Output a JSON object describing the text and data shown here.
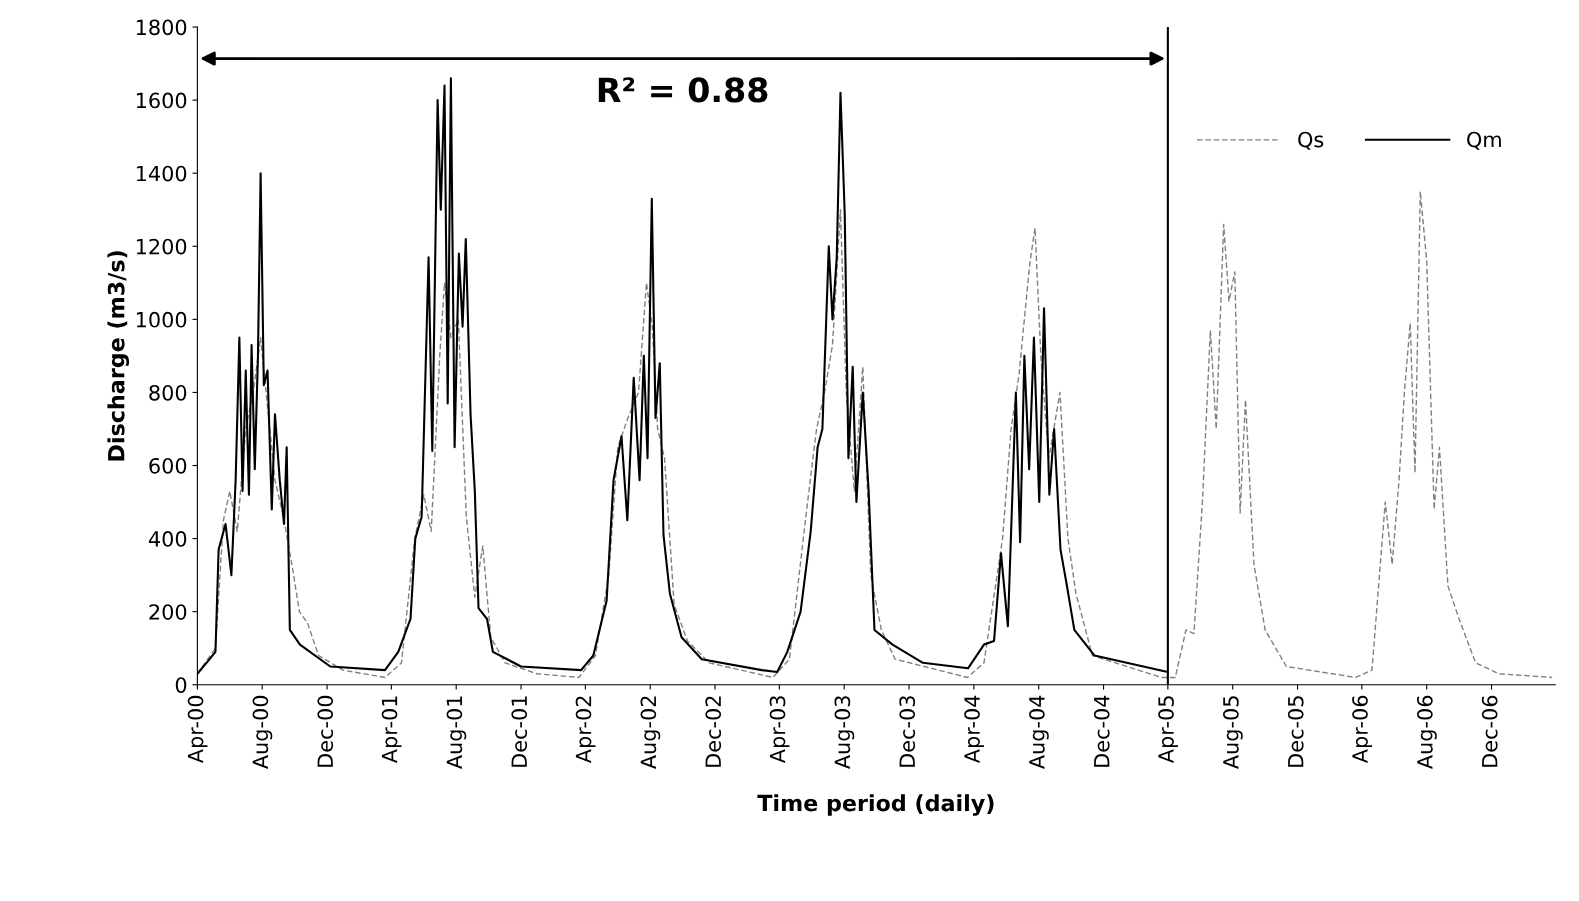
{
  "chart_data": {
    "type": "line",
    "xlabel": "Time period (daily)",
    "ylabel": "Discharge (m3/s)",
    "xlim": [
      "2000-04-01",
      "2007-03-31"
    ],
    "ylim": [
      0,
      1800
    ],
    "yticks": [
      0,
      200,
      400,
      600,
      800,
      1000,
      1200,
      1400,
      1600,
      1800
    ],
    "xticks": [
      {
        "value": "2000-04-01",
        "label": "Apr-00"
      },
      {
        "value": "2000-08-01",
        "label": "Aug-00"
      },
      {
        "value": "2000-12-01",
        "label": "Dec-00"
      },
      {
        "value": "2001-04-01",
        "label": "Apr-01"
      },
      {
        "value": "2001-08-01",
        "label": "Aug-01"
      },
      {
        "value": "2001-12-01",
        "label": "Dec-01"
      },
      {
        "value": "2002-04-01",
        "label": "Apr-02"
      },
      {
        "value": "2002-08-01",
        "label": "Aug-02"
      },
      {
        "value": "2002-12-01",
        "label": "Dec-02"
      },
      {
        "value": "2003-04-01",
        "label": "Apr-03"
      },
      {
        "value": "2003-08-01",
        "label": "Aug-03"
      },
      {
        "value": "2003-12-01",
        "label": "Dec-03"
      },
      {
        "value": "2004-04-01",
        "label": "Apr-04"
      },
      {
        "value": "2004-08-01",
        "label": "Aug-04"
      },
      {
        "value": "2004-12-01",
        "label": "Dec-04"
      },
      {
        "value": "2005-04-01",
        "label": "Apr-05"
      },
      {
        "value": "2005-08-01",
        "label": "Aug-05"
      },
      {
        "value": "2005-12-01",
        "label": "Dec-05"
      },
      {
        "value": "2006-04-01",
        "label": "Apr-06"
      },
      {
        "value": "2006-08-01",
        "label": "Aug-06"
      },
      {
        "value": "2006-12-01",
        "label": "Dec-06"
      }
    ],
    "grid": false,
    "legend": "top right",
    "marker": "none",
    "ref_lines": [
      {
        "axis": "x",
        "value": "2005-04-01",
        "label": null,
        "color": "#000000",
        "line_style": "solid"
      }
    ],
    "annotations": [
      "R² = 0.88"
    ],
    "series": [
      {
        "name": "Qs",
        "color": "#808080",
        "line_style": "dashed",
        "x": [
          "2000-04-01",
          "2000-05-05",
          "2000-05-20",
          "2000-06-01",
          "2000-06-15",
          "2000-07-01",
          "2000-07-15",
          "2000-07-29",
          "2000-08-11",
          "2000-08-25",
          "2000-09-10",
          "2000-09-28",
          "2000-10-10",
          "2000-10-25",
          "2000-11-15",
          "2000-12-31",
          "2001-03-20",
          "2001-04-20",
          "2001-05-15",
          "2001-06-01",
          "2001-06-15",
          "2001-07-01",
          "2001-07-10",
          "2001-07-22",
          "2001-08-05",
          "2001-08-20",
          "2001-09-05",
          "2001-09-20",
          "2001-10-05",
          "2001-11-01",
          "2001-12-31",
          "2002-03-20",
          "2002-04-20",
          "2002-05-15",
          "2002-06-01",
          "2002-06-20",
          "2002-07-10",
          "2002-07-25",
          "2002-08-05",
          "2002-08-15",
          "2002-08-28",
          "2002-09-15",
          "2002-10-10",
          "2002-11-20",
          "2003-03-20",
          "2003-04-20",
          "2003-05-20",
          "2003-06-10",
          "2003-06-25",
          "2003-07-10",
          "2003-07-25",
          "2003-08-05",
          "2003-08-20",
          "2003-09-05",
          "2003-09-20",
          "2003-10-10",
          "2003-11-05",
          "2004-03-20",
          "2004-04-20",
          "2004-05-25",
          "2004-06-10",
          "2004-06-25",
          "2004-07-05",
          "2004-07-15",
          "2004-07-25",
          "2004-08-05",
          "2004-08-20",
          "2004-09-10",
          "2004-09-25",
          "2004-10-10",
          "2004-11-10",
          "2005-03-20",
          "2005-04-15",
          "2005-05-05",
          "2005-05-20",
          "2005-06-05",
          "2005-06-20",
          "2005-07-01",
          "2005-07-15",
          "2005-07-25",
          "2005-08-05",
          "2005-08-15",
          "2005-08-25",
          "2005-09-10",
          "2005-10-01",
          "2005-11-10",
          "2006-03-20",
          "2006-04-20",
          "2006-05-15",
          "2006-05-28",
          "2006-06-10",
          "2006-06-20",
          "2006-07-01",
          "2006-07-10",
          "2006-07-20",
          "2006-08-01",
          "2006-08-15",
          "2006-08-25",
          "2006-09-10",
          "2006-10-01",
          "2006-11-01",
          "2006-12-15",
          "2007-03-25"
        ],
        "values": [
          30,
          100,
          450,
          530,
          420,
          700,
          800,
          950,
          760,
          560,
          460,
          310,
          200,
          170,
          80,
          40,
          20,
          60,
          400,
          520,
          420,
          900,
          1100,
          950,
          1000,
          460,
          240,
          380,
          130,
          60,
          30,
          20,
          80,
          300,
          650,
          730,
          800,
          1100,
          980,
          700,
          620,
          220,
          120,
          60,
          20,
          70,
          450,
          700,
          800,
          930,
          1300,
          800,
          530,
          870,
          300,
          150,
          70,
          20,
          60,
          400,
          700,
          850,
          1000,
          1150,
          1250,
          900,
          620,
          800,
          400,
          250,
          80,
          20,
          20,
          150,
          140,
          500,
          970,
          700,
          1260,
          1050,
          1130,
          470,
          780,
          330,
          150,
          50,
          20,
          40,
          500,
          330,
          560,
          800,
          990,
          580,
          1350,
          1160,
          480,
          650,
          270,
          180,
          60,
          30,
          20
        ]
      },
      {
        "name": "Qm",
        "color": "#000000",
        "line_style": "solid",
        "x": [
          "2000-04-01",
          "2000-04-24",
          "2000-05-05",
          "2000-05-11",
          "2000-05-24",
          "2000-06-04",
          "2000-06-12",
          "2000-06-19",
          "2000-06-25",
          "2000-07-01",
          "2000-07-07",
          "2000-07-12",
          "2000-07-18",
          "2000-07-24",
          "2000-07-29",
          "2000-08-04",
          "2000-08-11",
          "2000-08-19",
          "2000-08-25",
          "2000-09-03",
          "2000-09-11",
          "2000-09-16",
          "2000-09-22",
          "2000-10-11",
          "2000-12-07",
          "2001-03-20",
          "2001-04-14",
          "2001-05-07",
          "2001-05-16",
          "2001-05-28",
          "2001-06-10",
          "2001-06-17",
          "2001-06-27",
          "2001-07-03",
          "2001-07-10",
          "2001-07-16",
          "2001-07-22",
          "2001-07-29",
          "2001-08-06",
          "2001-08-13",
          "2001-08-19",
          "2001-08-28",
          "2001-09-05",
          "2001-09-12",
          "2001-09-28",
          "2001-10-09",
          "2001-12-01",
          "2002-03-24",
          "2002-04-16",
          "2002-05-11",
          "2002-05-24",
          "2002-06-08",
          "2002-06-19",
          "2002-07-01",
          "2002-07-12",
          "2002-07-20",
          "2002-07-27",
          "2002-08-04",
          "2002-08-11",
          "2002-08-19",
          "2002-08-26",
          "2002-09-07",
          "2002-09-29",
          "2002-11-06",
          "2003-02-27",
          "2003-03-28",
          "2003-04-16",
          "2003-05-11",
          "2003-05-30",
          "2003-06-12",
          "2003-06-21",
          "2003-07-03",
          "2003-07-10",
          "2003-07-18",
          "2003-07-25",
          "2003-08-02",
          "2003-08-09",
          "2003-08-17",
          "2003-08-24",
          "2003-09-05",
          "2003-09-16",
          "2003-09-27",
          "2003-10-31",
          "2003-12-27",
          "2004-03-21",
          "2004-04-20",
          "2004-05-09",
          "2004-05-22",
          "2004-06-04",
          "2004-06-19",
          "2004-06-27",
          "2004-07-05",
          "2004-07-14",
          "2004-07-23",
          "2004-08-02",
          "2004-08-11",
          "2004-08-21",
          "2004-08-30",
          "2004-09-11",
          "2004-09-22",
          "2004-10-07",
          "2004-11-14",
          "2005-04-01"
        ],
        "values": [
          30,
          70,
          90,
          370,
          440,
          300,
          560,
          950,
          530,
          860,
          520,
          930,
          590,
          900,
          1400,
          820,
          860,
          480,
          740,
          560,
          440,
          650,
          150,
          110,
          50,
          40,
          90,
          180,
          400,
          460,
          1170,
          640,
          1600,
          1300,
          1640,
          770,
          1660,
          650,
          1180,
          980,
          1220,
          740,
          530,
          210,
          180,
          90,
          50,
          40,
          80,
          230,
          560,
          680,
          450,
          840,
          560,
          900,
          620,
          1330,
          730,
          880,
          410,
          250,
          130,
          70,
          40,
          35,
          90,
          200,
          420,
          650,
          700,
          1200,
          1000,
          1170,
          1620,
          1290,
          620,
          870,
          500,
          800,
          530,
          150,
          110,
          60,
          45,
          110,
          120,
          360,
          160,
          800,
          390,
          900,
          590,
          950,
          500,
          1030,
          520,
          700,
          370,
          280,
          150,
          80,
          35
        ]
      }
    ]
  }
}
